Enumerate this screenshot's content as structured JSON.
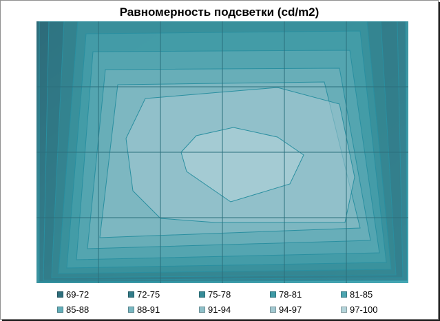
{
  "chart_data": {
    "type": "contour",
    "title": "Равномерность подсветки (cd/m2)",
    "grid": true,
    "legend_position": "bottom",
    "levels": [
      {
        "label": "69-72",
        "color": "#2d6e7c"
      },
      {
        "label": "72-75",
        "color": "#327c89"
      },
      {
        "label": "75-78",
        "color": "#378c98"
      },
      {
        "label": "78-81",
        "color": "#3e9aa6"
      },
      {
        "label": "81-85",
        "color": "#4da5b0"
      },
      {
        "label": "85-88",
        "color": "#62adb8"
      },
      {
        "label": "88-91",
        "color": "#78b6c0"
      },
      {
        "label": "91-94",
        "color": "#8ebfc8"
      },
      {
        "label": "94-97",
        "color": "#a2c9d1"
      },
      {
        "label": "97-100",
        "color": "#b4d4da"
      }
    ]
  }
}
